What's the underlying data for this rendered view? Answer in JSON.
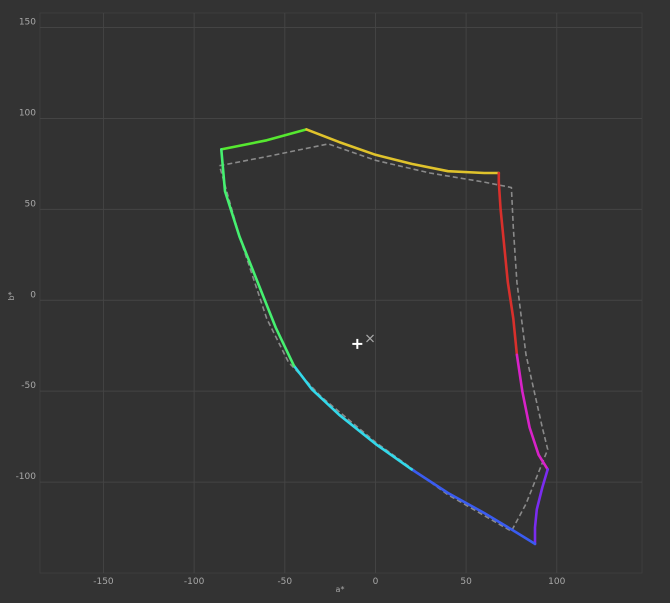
{
  "chart_data": {
    "type": "line",
    "xlabel": "a*",
    "ylabel": "b*",
    "xlim": [
      -185,
      147
    ],
    "ylim": [
      -150,
      158
    ],
    "x_ticks": [
      -150,
      -100,
      -50,
      0,
      50,
      100
    ],
    "y_ticks": [
      150,
      100,
      50,
      0,
      -50,
      -100
    ],
    "grid": true,
    "series": [
      {
        "style": "solid-gradient",
        "segments": [
          {
            "color": "#56e830",
            "points": [
              [
                -85,
                83
              ],
              [
                -60,
                88
              ],
              [
                -38,
                94
              ]
            ]
          },
          {
            "color": "#e0c32c",
            "points": [
              [
                -38,
                94
              ],
              [
                -20,
                87
              ],
              [
                0,
                80
              ],
              [
                20,
                75
              ],
              [
                40,
                71
              ],
              [
                60,
                70
              ],
              [
                68,
                70
              ]
            ]
          },
          {
            "color": "#d8302c",
            "points": [
              [
                68,
                70
              ],
              [
                68,
                65
              ],
              [
                69,
                50
              ],
              [
                71,
                30
              ],
              [
                73,
                10
              ],
              [
                76,
                -10
              ],
              [
                78,
                -30
              ]
            ]
          },
          {
            "color": "#d822c8",
            "points": [
              [
                78,
                -30
              ],
              [
                81,
                -50
              ],
              [
                85,
                -70
              ],
              [
                90,
                -85
              ],
              [
                95,
                -93
              ]
            ]
          },
          {
            "color": "#7a2cf0",
            "points": [
              [
                95,
                -93
              ],
              [
                92,
                -103
              ],
              [
                89,
                -115
              ],
              [
                88,
                -125
              ],
              [
                88,
                -134
              ]
            ]
          },
          {
            "color": "#3a5cf0",
            "points": [
              [
                88,
                -134
              ],
              [
                75,
                -126
              ],
              [
                60,
                -117
              ],
              [
                40,
                -106
              ],
              [
                20,
                -93
              ]
            ]
          },
          {
            "color": "#33d9ea",
            "points": [
              [
                20,
                -93
              ],
              [
                0,
                -79
              ],
              [
                -20,
                -63
              ],
              [
                -35,
                -49
              ],
              [
                -45,
                -36
              ]
            ]
          },
          {
            "color": "#46f070",
            "points": [
              [
                -45,
                -36
              ],
              [
                -55,
                -15
              ],
              [
                -65,
                10
              ],
              [
                -75,
                35
              ],
              [
                -83,
                60
              ],
              [
                -85,
                83
              ]
            ]
          }
        ]
      },
      {
        "style": "dashed",
        "color": "#8a8a8a",
        "points": [
          [
            -86,
            74
          ],
          [
            -60,
            79
          ],
          [
            -26,
            86
          ],
          [
            0,
            77
          ],
          [
            30,
            70
          ],
          [
            60,
            65
          ],
          [
            75,
            62
          ],
          [
            76,
            40
          ],
          [
            78,
            10
          ],
          [
            83,
            -30
          ],
          [
            92,
            -70
          ],
          [
            95,
            -82
          ],
          [
            83,
            -112
          ],
          [
            75,
            -127
          ],
          [
            40,
            -107
          ],
          [
            0,
            -78
          ],
          [
            -30,
            -53
          ],
          [
            -48,
            -34
          ],
          [
            -60,
            -10
          ],
          [
            -75,
            35
          ],
          [
            -86,
            74
          ]
        ]
      }
    ],
    "markers": [
      {
        "type": "plus",
        "color": "#ffffff",
        "x": -10,
        "y": -24
      },
      {
        "type": "cross",
        "color": "#aaaaaa",
        "x": -3,
        "y": -21
      }
    ]
  }
}
